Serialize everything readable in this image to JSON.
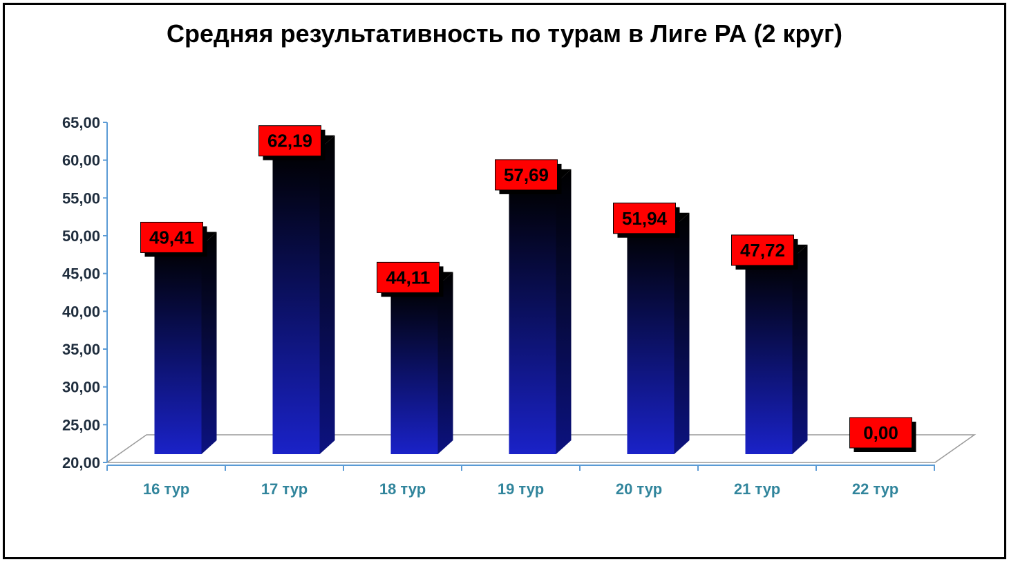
{
  "chart_data": {
    "type": "bar",
    "title": "Средняя результативность по турам в Лиге РА (2 круг)",
    "categories": [
      "16 тур",
      "17 тур",
      "18 тур",
      "19 тур",
      "20 тур",
      "21 тур",
      "22 тур"
    ],
    "values": [
      49.41,
      62.19,
      44.11,
      57.69,
      51.94,
      47.72,
      0.0
    ],
    "value_labels": [
      "49,41",
      "62,19",
      "44,11",
      "57,69",
      "51,94",
      "47,72",
      "0,00"
    ],
    "y_ticks": [
      "20,00",
      "25,00",
      "30,00",
      "35,00",
      "40,00",
      "45,00",
      "50,00",
      "55,00",
      "60,00",
      "65,00"
    ],
    "ylim": [
      20,
      65
    ],
    "xlabel": "",
    "ylabel": "",
    "grid": false,
    "legend": "none",
    "style": "3d-column",
    "colors": {
      "bar_bottom": "#1a22c8",
      "bar_top": "#000000",
      "label_bg": "#ff0000",
      "axis": "#5b9bd5",
      "category_text": "#31859c",
      "tick_text": "#1f2d3d"
    }
  }
}
